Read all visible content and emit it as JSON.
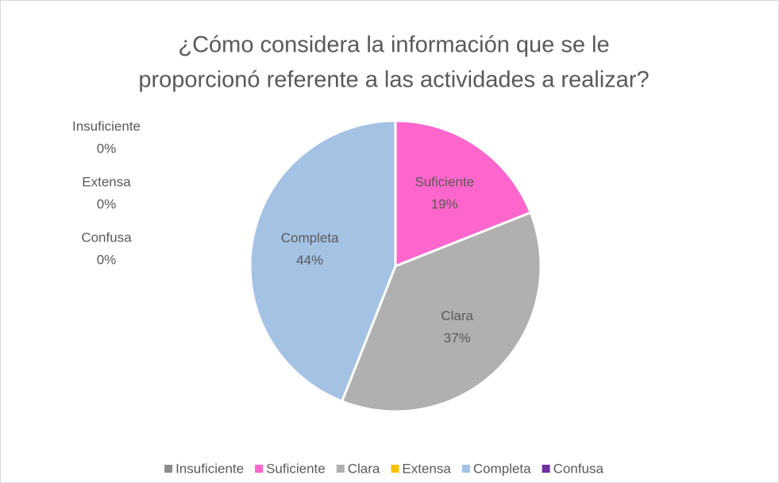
{
  "chart_data": {
    "type": "pie",
    "title": [
      "¿Cómo considera la información que se le",
      "proporcionó referente a las actividades a realizar?"
    ],
    "categories": [
      "Insuficiente",
      "Suficiente",
      "Clara",
      "Extensa",
      "Completa",
      "Confusa"
    ],
    "values": [
      0,
      19,
      37,
      0,
      44,
      0
    ],
    "value_labels": [
      "0%",
      "19%",
      "37%",
      "0%",
      "44%",
      "0%"
    ],
    "colors": [
      "#8c8c8c",
      "#ff66cc",
      "#b0b0b0",
      "#ffc000",
      "#a4c2e4",
      "#7030a0"
    ],
    "legend": "bottom"
  }
}
